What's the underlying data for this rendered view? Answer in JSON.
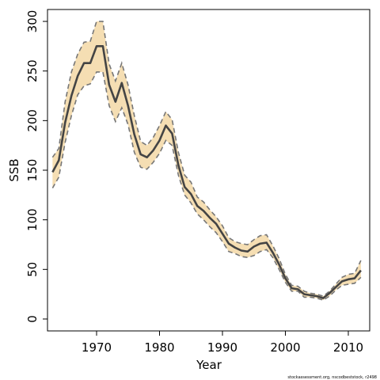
{
  "chart_data": {
    "type": "line",
    "xlabel": "Year",
    "ylabel": "SSB",
    "xlim": [
      1962.2,
      2013.4
    ],
    "ylim": [
      -12,
      312
    ],
    "xticks": [
      1970,
      1980,
      1990,
      2000,
      2010
    ],
    "yticks": [
      0,
      50,
      100,
      150,
      200,
      250,
      300
    ],
    "grid": false,
    "legend": "none",
    "x": [
      1963,
      1964,
      1965,
      1966,
      1967,
      1968,
      1969,
      1970,
      1971,
      1972,
      1973,
      1974,
      1975,
      1976,
      1977,
      1978,
      1979,
      1980,
      1981,
      1982,
      1983,
      1984,
      1985,
      1986,
      1987,
      1988,
      1989,
      1990,
      1991,
      1992,
      1993,
      1994,
      1995,
      1996,
      1997,
      1998,
      1999,
      2000,
      2001,
      2002,
      2003,
      2004,
      2005,
      2006,
      2007,
      2008,
      2009,
      2010,
      2011,
      2012
    ],
    "series": [
      {
        "name": "",
        "values": [
          148,
          160,
          198,
          225,
          245,
          258,
          258,
          275,
          275,
          236,
          219,
          238,
          215,
          186,
          166,
          163,
          170,
          180,
          195,
          187,
          155,
          133,
          126,
          114,
          109,
          102,
          96,
          86,
          76,
          72,
          69,
          68,
          73,
          76,
          77,
          67,
          55,
          41,
          31,
          30,
          25,
          24,
          23,
          21,
          26,
          32,
          38,
          40,
          41,
          49
        ]
      }
    ],
    "lower": [
      132,
      143,
      178,
      205,
      226,
      235,
      237,
      249,
      249,
      215,
      199,
      213,
      196,
      168,
      153,
      151,
      158,
      167,
      180,
      175,
      145,
      125,
      117,
      106,
      100,
      93,
      87,
      78,
      68,
      66,
      63,
      62,
      64,
      68,
      70,
      62,
      50,
      37,
      28,
      28,
      22,
      22,
      21,
      19,
      23,
      29,
      34,
      35,
      36,
      42
    ],
    "upper": [
      163,
      172,
      219,
      249,
      267,
      279,
      280,
      300,
      300,
      257,
      240,
      258,
      236,
      205,
      179,
      175,
      183,
      195,
      209,
      201,
      168,
      145,
      138,
      123,
      118,
      110,
      103,
      94,
      82,
      78,
      76,
      75,
      80,
      84,
      85,
      74,
      61,
      45,
      34,
      33,
      28,
      26,
      25,
      23,
      28,
      35,
      42,
      45,
      46,
      59
    ]
  },
  "style": {
    "band_fill": "#f5deb3",
    "band_edge": "#777777",
    "line_color": "#444444",
    "axis_color": "#000000"
  },
  "footnote": "stockassessment.org, nscodbeststock, r2498"
}
